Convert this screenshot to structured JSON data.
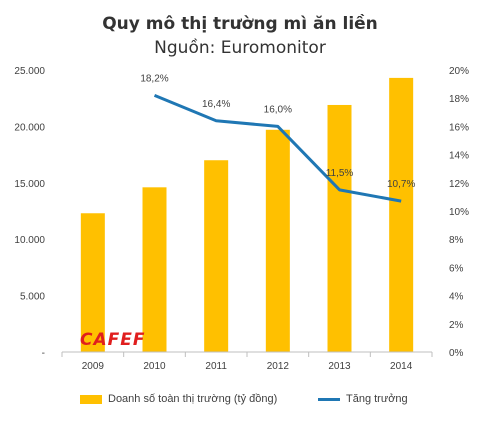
{
  "chart_data": {
    "type": "bar",
    "title": "Quy mô thị trường mì ăn liền",
    "subtitle": "Nguồn: Euromonitor",
    "categories": [
      "2009",
      "2010",
      "2011",
      "2012",
      "2013",
      "2014"
    ],
    "series": [
      {
        "name": "Doanh số toàn thị trường (tỷ đồng)",
        "type": "bar",
        "axis": "left",
        "color": "#FFC000",
        "values": [
          12300,
          14600,
          17000,
          19700,
          21900,
          24300
        ]
      },
      {
        "name": "Tăng trưởng",
        "type": "line",
        "axis": "right",
        "color": "#1F77B4",
        "values": [
          null,
          18.2,
          16.4,
          16.0,
          11.5,
          10.7
        ],
        "data_labels": [
          "",
          "18,2%",
          "16,4%",
          "16,0%",
          "11,5%",
          "10,7%"
        ]
      }
    ],
    "y_left": {
      "ylim": [
        0,
        25000
      ],
      "ticks": [
        0,
        5000,
        10000,
        15000,
        20000,
        25000
      ],
      "tick_labels": [
        "-",
        "5.000",
        "10.000",
        "15.000",
        "20.000",
        "25.000"
      ]
    },
    "y_right": {
      "ylim": [
        0,
        20
      ],
      "ticks": [
        0,
        2,
        4,
        6,
        8,
        10,
        12,
        14,
        16,
        18,
        20
      ],
      "tick_labels": [
        "0%",
        "2%",
        "4%",
        "6%",
        "8%",
        "10%",
        "12%",
        "14%",
        "16%",
        "18%",
        "20%"
      ]
    },
    "grid": false,
    "legend_position": "bottom"
  },
  "watermark": "CAFEF"
}
